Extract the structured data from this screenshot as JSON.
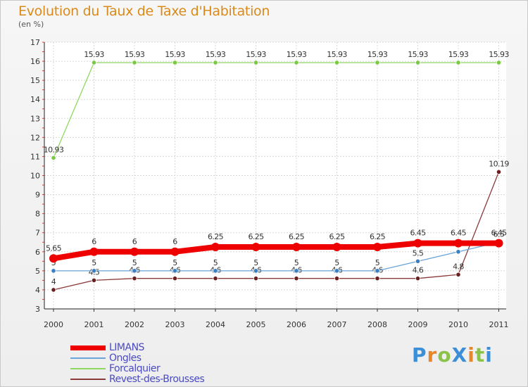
{
  "title": "Evolution du Taux de Taxe d'Habitation",
  "subtitle": "(en %)",
  "brand": {
    "letters": [
      {
        "ch": "P",
        "color": "#3a8fd8"
      },
      {
        "ch": "r",
        "color": "#e8862a"
      },
      {
        "ch": "o",
        "color": "#8bc34a"
      },
      {
        "ch": "X",
        "color": "#3a8fd8"
      },
      {
        "ch": "i",
        "color": "#e8862a"
      },
      {
        "ch": "t",
        "color": "#8bc34a"
      },
      {
        "ch": "i",
        "color": "#3a8fd8"
      }
    ]
  },
  "chart_data": {
    "type": "line",
    "title": "Evolution du Taux de Taxe d'Habitation",
    "ylabel": "(en %)",
    "xlabel": "",
    "x": [
      "2000",
      "2001",
      "2002",
      "2003",
      "2004",
      "2005",
      "2006",
      "2007",
      "2008",
      "2009",
      "2010",
      "2011"
    ],
    "ylim": [
      3,
      17
    ],
    "yticks": [
      3,
      4,
      5,
      6,
      7,
      8,
      9,
      10,
      11,
      12,
      13,
      14,
      15,
      16,
      17
    ],
    "grid": true,
    "legend_position": "bottom-left",
    "series": [
      {
        "name": "Forcalquier",
        "color": "#8fd860",
        "marker": "#7ac943",
        "width": 1.3,
        "radius": 3.2,
        "values": [
          10.93,
          15.93,
          15.93,
          15.93,
          15.93,
          15.93,
          15.93,
          15.93,
          15.93,
          15.93,
          15.93,
          15.93
        ],
        "labels": [
          "10.93",
          "15.93",
          "15.93",
          "15.93",
          "15.93",
          "15.93",
          "15.93",
          "15.93",
          "15.93",
          "15.93",
          "15.93",
          "15.93"
        ]
      },
      {
        "name": "Revest-des-Brousses",
        "color": "#8b3a3a",
        "marker": "#6b2020",
        "width": 1.3,
        "radius": 3.2,
        "values": [
          4,
          4.5,
          4.6,
          4.6,
          4.6,
          4.6,
          4.6,
          4.6,
          4.6,
          4.6,
          4.8,
          10.19
        ],
        "labels": [
          "4",
          "4.5",
          "4.6",
          "4.6",
          "4.6",
          "4.6",
          "4.6",
          "4.6",
          "4.6",
          "4.6",
          "4.8",
          "10.19"
        ]
      },
      {
        "name": "Ongles",
        "color": "#6aa4d8",
        "marker": "#3a7fc4",
        "width": 1.3,
        "radius": 3.2,
        "values": [
          5,
          5,
          5,
          5,
          5,
          5,
          5,
          5,
          5,
          5.5,
          6,
          6.5
        ],
        "labels": [
          "5",
          "5",
          "5",
          "5",
          "5",
          "5",
          "5",
          "5",
          "5",
          "5.5",
          "6",
          "6.5"
        ]
      },
      {
        "name": "LIMANS",
        "color": "#ee0000",
        "marker": "#ee0000",
        "width": 8,
        "radius": 6,
        "values": [
          5.65,
          6,
          6,
          6,
          6.25,
          6.25,
          6.25,
          6.25,
          6.25,
          6.45,
          6.45,
          6.45
        ],
        "labels": [
          "5.65",
          "6",
          "6",
          "6",
          "6.25",
          "6.25",
          "6.25",
          "6.25",
          "6.25",
          "6.45",
          "6.45",
          "6.45"
        ]
      }
    ],
    "legend_order": [
      "LIMANS",
      "Ongles",
      "Forcalquier",
      "Revest-des-Brousses"
    ]
  }
}
